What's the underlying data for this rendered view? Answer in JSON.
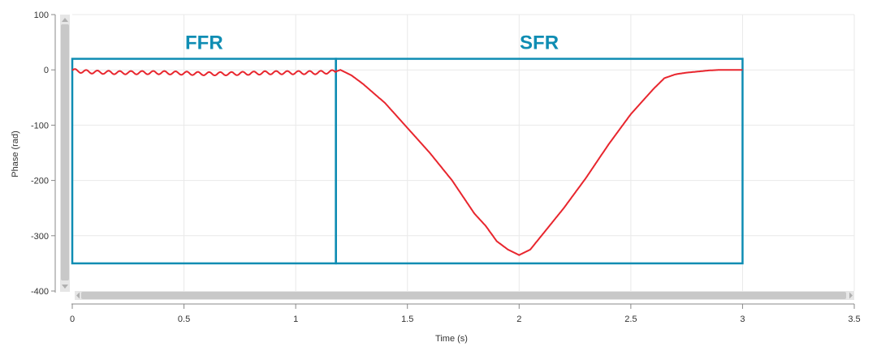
{
  "chart_data": {
    "type": "line",
    "xlabel": "Time (s)",
    "ylabel": "Phase (rad)",
    "xlim": [
      0,
      3.5
    ],
    "ylim": [
      -400,
      100
    ],
    "grid": true,
    "x_ticks": [
      "0",
      "0.5",
      "1",
      "1.5",
      "2",
      "2.5",
      "3",
      "3.5"
    ],
    "y_ticks": [
      "100",
      "0",
      "-100",
      "-200",
      "-300",
      "-400"
    ],
    "series": [
      {
        "color": "#e8262e",
        "x": [
          0,
          0.05,
          0.1,
          0.2,
          0.3,
          0.4,
          0.5,
          0.6,
          0.7,
          0.8,
          0.9,
          1.0,
          1.1,
          1.18,
          1.2,
          1.25,
          1.3,
          1.4,
          1.5,
          1.6,
          1.7,
          1.75,
          1.8,
          1.85,
          1.9,
          1.95,
          2.0,
          2.05,
          2.1,
          2.2,
          2.3,
          2.4,
          2.5,
          2.6,
          2.65,
          2.7,
          2.75,
          2.8,
          2.85,
          2.9,
          3.0
        ],
        "y": [
          -1,
          -3,
          -4,
          -5,
          -5,
          -5,
          -6,
          -7,
          -7,
          -6,
          -5,
          -5,
          -5,
          -3,
          0,
          -10,
          -25,
          -60,
          -105,
          -150,
          -200,
          -230,
          -260,
          -282,
          -310,
          -325,
          -335,
          -325,
          -300,
          -250,
          -195,
          -135,
          -80,
          -35,
          -15,
          -8,
          -5,
          -3,
          -1,
          0,
          0
        ]
      }
    ],
    "regions": [
      {
        "label": "FFR",
        "x_start": 0,
        "x_end": 1.18,
        "y_top": 20,
        "y_bottom": -350,
        "color": "#0f8db3"
      },
      {
        "label": "SFR",
        "x_start": 1.18,
        "x_end": 3.0,
        "y_top": 20,
        "y_bottom": -350,
        "color": "#0f8db3"
      }
    ]
  }
}
